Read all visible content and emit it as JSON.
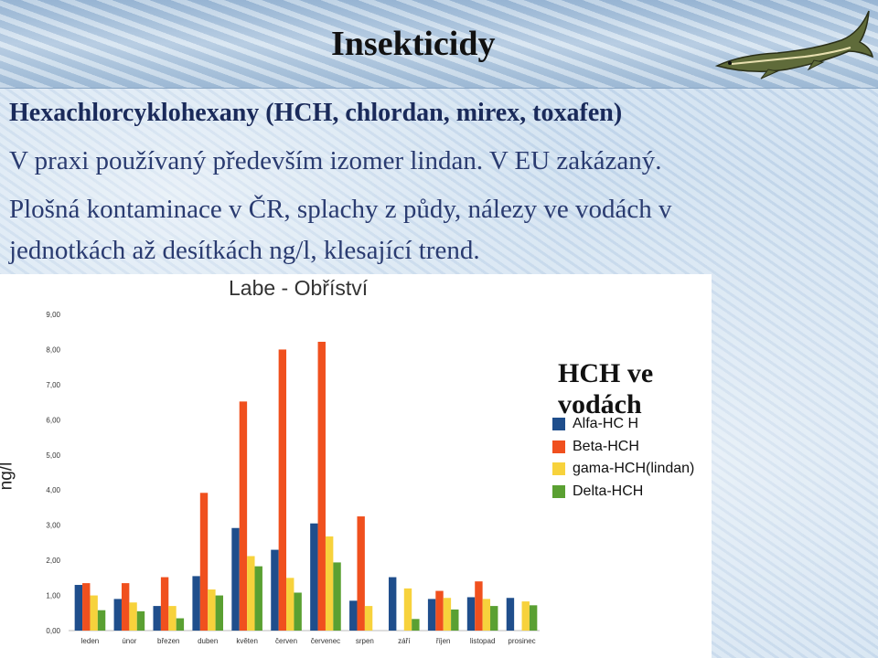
{
  "slide": {
    "title": "Insekticidy",
    "lines": [
      "Hexachlorcyklohexany (HCH, chlordan, mirex, toxafen)",
      "V praxi používaný především izomer lindan. V EU zakázaný.",
      "Plošná kontaminace v ČR, splachy z půdy, nálezy ve vodách v",
      "jednotkách až desítkách ng/l, klesající trend."
    ],
    "legend_title": "HCH ve vodách"
  },
  "chart_data": {
    "type": "bar",
    "title": "Labe - Obříství",
    "ylabel": "ng/l",
    "xlabel": "",
    "ylim": [
      0,
      9
    ],
    "yticks": [
      "0,00",
      "1,00",
      "2,00",
      "3,00",
      "4,00",
      "5,00",
      "6,00",
      "7,00",
      "8,00",
      "9,00"
    ],
    "grid": false,
    "legend_position": "right",
    "categories": [
      "leden",
      "únor",
      "březen",
      "duben",
      "květen",
      "červen",
      "červenec",
      "srpen",
      "září",
      "říjen",
      "listopad",
      "prosinec"
    ],
    "series": [
      {
        "name": "Alfa-HC H",
        "color": "#1f4e8c",
        "values": [
          1.3,
          0.9,
          0.7,
          1.55,
          2.92,
          2.3,
          3.05,
          0.85,
          1.52,
          0.9,
          0.95,
          0.93
        ]
      },
      {
        "name": "Beta-HCH",
        "color": "#f0501e",
        "values": [
          1.35,
          1.35,
          1.52,
          3.92,
          6.52,
          8.0,
          8.22,
          3.25,
          null,
          1.13,
          1.4,
          null
        ]
      },
      {
        "name": "gama-HCH(lindan)",
        "color": "#f7d23c",
        "values": [
          1.0,
          0.8,
          0.7,
          1.17,
          2.12,
          1.5,
          2.68,
          0.7,
          1.2,
          0.93,
          0.9,
          0.83
        ]
      },
      {
        "name": "Delta-HCH",
        "color": "#5aa032",
        "values": [
          0.58,
          0.55,
          0.35,
          1.0,
          1.83,
          1.08,
          1.94,
          null,
          0.33,
          0.6,
          0.7,
          0.72
        ]
      }
    ]
  }
}
